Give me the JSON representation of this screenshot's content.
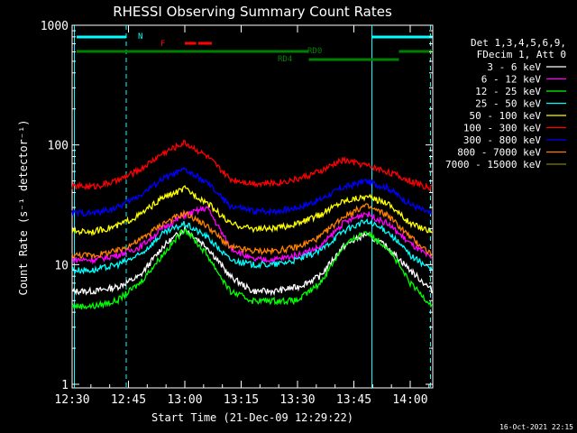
{
  "chart_data": {
    "type": "line",
    "title": "RHESSI Observing Summary Count Rates",
    "xlabel": "Start Time (21-Dec-09 12:29:22)",
    "ylabel": "Count Rate (s⁻¹ detector⁻¹)",
    "yscale": "log",
    "ylim": [
      1,
      1000
    ],
    "xlim_minutes": [
      12.5,
      14.1
    ],
    "y_ticks": [
      "1",
      "10",
      "100",
      "1000"
    ],
    "x_ticks": [
      "12:30",
      "12:45",
      "13:00",
      "13:15",
      "13:30",
      "13:45",
      "14:00"
    ],
    "footer_date": "16-Oct-2021 22:15",
    "legend_header": [
      "Det 1,3,4,5,6,9,",
      "FDecim 1, Att 0"
    ],
    "legend_position": "right",
    "flags": [
      {
        "label": "N",
        "color": "#00ffff",
        "segments": [
          [
            12.52,
            12.74
          ],
          [
            13.83,
            14.1
          ]
        ]
      },
      {
        "label": "F",
        "color": "#ff0000",
        "segments": [
          [
            13.0,
            13.05
          ],
          [
            13.06,
            13.12
          ]
        ]
      },
      {
        "label": "RD0",
        "color": "#008000",
        "segments": [
          [
            12.52,
            13.55
          ],
          [
            13.95,
            14.1
          ]
        ]
      },
      {
        "label": "RD4",
        "color": "#008000",
        "segments": [
          [
            13.55,
            13.95
          ]
        ]
      }
    ],
    "times": [
      12.5,
      12.6,
      12.7,
      12.8,
      12.9,
      13.0,
      13.1,
      13.2,
      13.3,
      13.4,
      13.5,
      13.6,
      13.7,
      13.8,
      13.9,
      14.0,
      14.1
    ],
    "series": [
      {
        "name": "3 - 6 keV",
        "color": "#ffffff",
        "values": [
          6,
          6,
          6.5,
          8,
          14,
          20,
          14,
          8,
          6,
          6,
          6.5,
          8,
          14,
          18,
          14,
          9,
          6
        ]
      },
      {
        "name": "6 - 12 keV",
        "color": "#ff00ff",
        "values": [
          11,
          11,
          12,
          14,
          20,
          26,
          30,
          14,
          11,
          11,
          12,
          14,
          22,
          27,
          22,
          15,
          11
        ]
      },
      {
        "name": "12 - 25 keV",
        "color": "#00ff00",
        "values": [
          4.5,
          4.5,
          5,
          7,
          12,
          20,
          12,
          6,
          5,
          5,
          5,
          7,
          14,
          19,
          14,
          7,
          4.5
        ]
      },
      {
        "name": "25 - 50 keV",
        "color": "#00ffff",
        "values": [
          9,
          9,
          10,
          12,
          18,
          22,
          17,
          11,
          10,
          10,
          11,
          13,
          19,
          23,
          19,
          12,
          9
        ]
      },
      {
        "name": "50 - 100 keV",
        "color": "#ffff00",
        "values": [
          19,
          19,
          21,
          26,
          36,
          43,
          33,
          22,
          20,
          20,
          22,
          26,
          34,
          37,
          33,
          22,
          19
        ]
      },
      {
        "name": "100 - 300 keV",
        "color": "#ff0000",
        "values": [
          45,
          45,
          50,
          62,
          85,
          105,
          80,
          52,
          48,
          48,
          52,
          60,
          75,
          68,
          60,
          50,
          43
        ]
      },
      {
        "name": "300 - 800 keV",
        "color": "#0000ff",
        "values": [
          27,
          27,
          30,
          38,
          52,
          62,
          48,
          31,
          28,
          28,
          30,
          35,
          44,
          50,
          44,
          32,
          26
        ]
      },
      {
        "name": "800 - 7000 keV",
        "color": "#ff8000",
        "values": [
          12,
          12,
          13,
          16,
          22,
          27,
          21,
          14,
          13,
          13,
          14,
          17,
          25,
          31,
          26,
          17,
          12
        ]
      },
      {
        "name": "7000 - 15000 keV",
        "color": "#808000",
        "values": []
      }
    ]
  }
}
